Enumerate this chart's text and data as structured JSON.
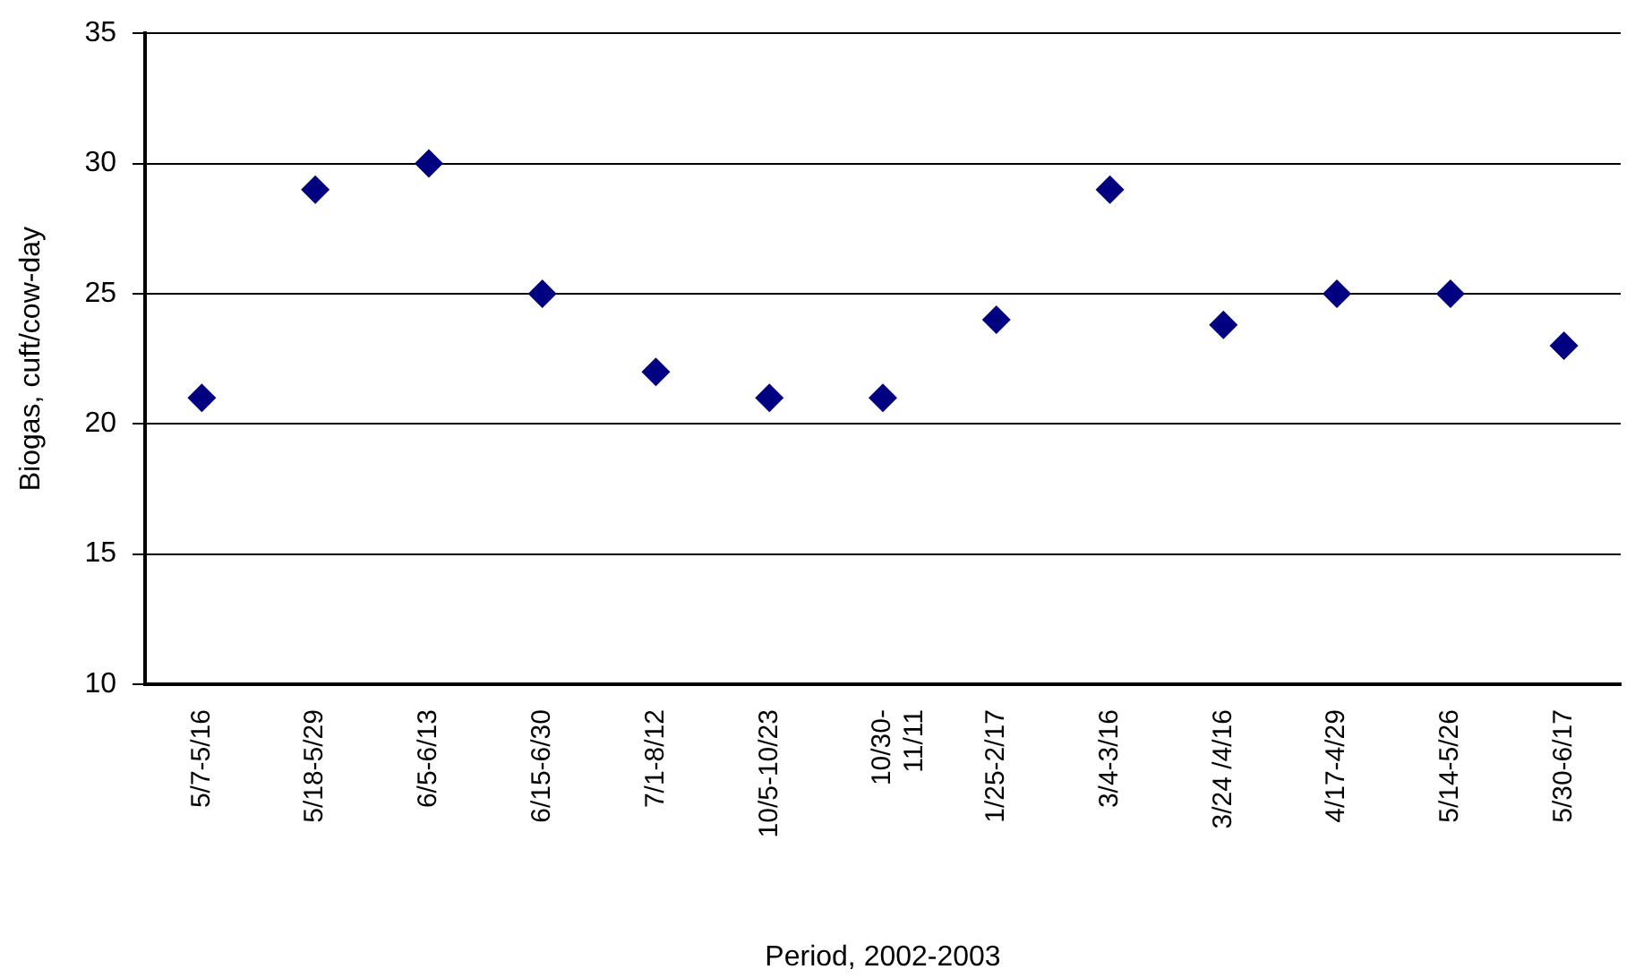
{
  "chart_data": {
    "type": "scatter",
    "xlabel": "Period, 2002-2003",
    "ylabel": "Biogas, cuft/cow-day",
    "categories": [
      "5/7-5/16",
      "5/18-5/29",
      "6/5-6/13",
      "6/15-6/30",
      "7/1-8/12",
      "10/5-10/23",
      "10/30-11/11",
      "1/25-2/17",
      "3/4-3/16",
      "3/24 /4/16",
      "4/17-4/29",
      "5/14-5/26",
      "5/30-6/17"
    ],
    "values": [
      21,
      29,
      30,
      25,
      22,
      21,
      21,
      24,
      29,
      23.8,
      25,
      25,
      23
    ],
    "color": "#000080",
    "ylim": [
      10,
      35
    ],
    "yticks": [
      10,
      15,
      20,
      25,
      30,
      35
    ],
    "grid": "y",
    "marker": "diamond"
  }
}
